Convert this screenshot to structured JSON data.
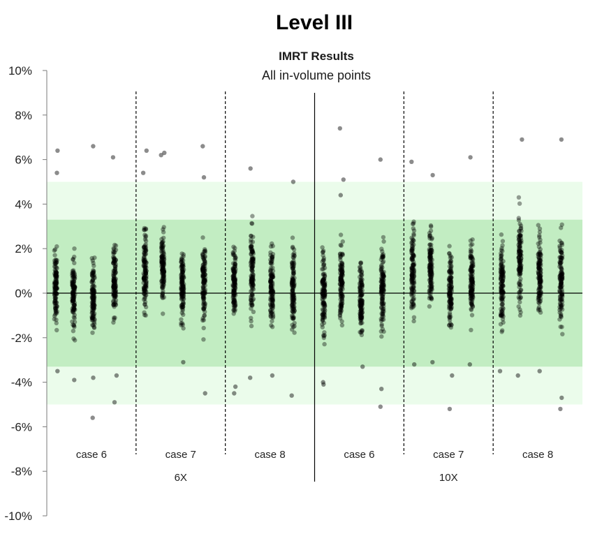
{
  "page": {
    "heading": "Level III"
  },
  "chart_data": {
    "type": "scatter",
    "title": "IMRT Results",
    "subtitle": "All in-volume points",
    "y_unit": "%",
    "ylim": [
      -10,
      10
    ],
    "y_ticks": [
      10,
      8,
      6,
      4,
      2,
      0,
      -2,
      -4,
      -6,
      -8,
      -10
    ],
    "y_tick_labels": [
      "10%",
      "8%",
      "6%",
      "4%",
      "2%",
      "0%",
      "-2%",
      "-4%",
      "-6%",
      "-8%",
      "-10%"
    ],
    "grid": false,
    "bands": [
      {
        "range": [
          -5,
          5
        ],
        "color": "#ebfceb"
      },
      {
        "range": [
          -3.3,
          3.3
        ],
        "color": "#c2edc2"
      }
    ],
    "groups": [
      {
        "label": "6X",
        "cases": [
          {
            "label": "case 6",
            "columns": [
              {
                "center": 0.3,
                "spread": 3.4,
                "outliers": [
                  6.4,
                  5.4,
                  -3.5
                ]
              },
              {
                "center": 0.0,
                "spread": 3.2,
                "outliers": [
                  -3.9
                ]
              },
              {
                "center": -0.3,
                "spread": 3.2,
                "outliers": [
                  6.6,
                  -5.6,
                  -3.8
                ]
              },
              {
                "center": 0.4,
                "spread": 3.6,
                "outliers": [
                  6.1,
                  -4.9,
                  -3.7
                ]
              }
            ]
          },
          {
            "label": "case 7",
            "columns": [
              {
                "center": 1.0,
                "spread": 3.6,
                "outliers": [
                  6.4,
                  5.4
                ]
              },
              {
                "center": 1.2,
                "spread": 3.6,
                "outliers": [
                  6.3,
                  6.2
                ]
              },
              {
                "center": 0.3,
                "spread": 3.4,
                "outliers": [
                  -3.1
                ]
              },
              {
                "center": 0.6,
                "spread": 3.7,
                "outliers": [
                  6.6,
                  5.2,
                  -4.5
                ]
              }
            ]
          },
          {
            "label": "case 8",
            "columns": [
              {
                "center": 0.5,
                "spread": 3.5,
                "outliers": [
                  -4.5,
                  -4.2
                ]
              },
              {
                "center": 0.8,
                "spread": 3.9,
                "outliers": [
                  5.6,
                  -3.8
                ]
              },
              {
                "center": 0.3,
                "spread": 3.6,
                "outliers": [
                  -3.7
                ]
              },
              {
                "center": 0.2,
                "spread": 4.0,
                "outliers": [
                  5.0,
                  -4.6
                ]
              }
            ]
          }
        ]
      },
      {
        "label": "10X",
        "cases": [
          {
            "label": "case 6",
            "columns": [
              {
                "center": 0.0,
                "spread": 3.8,
                "outliers": [
                  -4.0,
                  -4.1
                ]
              },
              {
                "center": 0.5,
                "spread": 3.9,
                "outliers": [
                  7.4,
                  5.1,
                  4.4
                ]
              },
              {
                "center": -0.3,
                "spread": 3.2,
                "outliers": [
                  -3.3
                ]
              },
              {
                "center": 0.2,
                "spread": 3.8,
                "outliers": [
                  6.0,
                  -5.1,
                  -4.3
                ]
              }
            ]
          },
          {
            "label": "case 7",
            "columns": [
              {
                "center": 1.0,
                "spread": 3.9,
                "outliers": [
                  5.9,
                  -3.2
                ]
              },
              {
                "center": 1.2,
                "spread": 3.9,
                "outliers": [
                  5.3,
                  -3.1
                ]
              },
              {
                "center": 0.2,
                "spread": 3.6,
                "outliers": [
                  -3.7,
                  -5.2
                ]
              },
              {
                "center": 0.6,
                "spread": 3.8,
                "outliers": [
                  6.1,
                  -3.2
                ]
              }
            ]
          },
          {
            "label": "case 8",
            "columns": [
              {
                "center": 0.5,
                "spread": 3.7,
                "outliers": [
                  -3.5
                ]
              },
              {
                "center": 1.3,
                "spread": 4.2,
                "outliers": [
                  6.9,
                  -3.7
                ]
              },
              {
                "center": 0.9,
                "spread": 3.9,
                "outliers": [
                  -3.5
                ]
              },
              {
                "center": 0.6,
                "spread": 4.3,
                "outliers": [
                  6.9,
                  -5.2,
                  -4.7
                ]
              }
            ]
          }
        ]
      }
    ],
    "points_per_column": 120,
    "marker_color": "#000000",
    "marker_opacity": 0.38
  }
}
